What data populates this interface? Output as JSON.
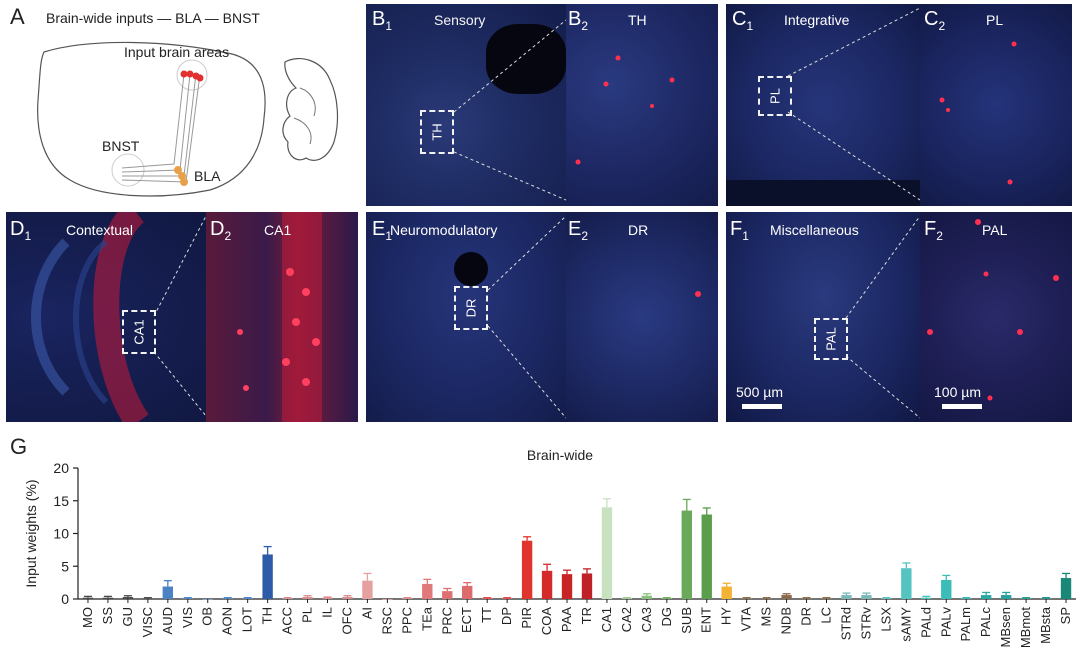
{
  "panel_a": {
    "letter": "A",
    "title": "Brain-wide inputs — BLA — BNST",
    "label_input": "Input brain areas",
    "label_bnst": "BNST",
    "label_bla": "BLA"
  },
  "panels": {
    "b1": {
      "letter": "B",
      "sub": "1",
      "title": "Sensory",
      "roi": "TH"
    },
    "b2": {
      "letter": "B",
      "sub": "2",
      "title": "TH"
    },
    "c1": {
      "letter": "C",
      "sub": "1",
      "title": "Integrative",
      "roi": "PL"
    },
    "c2": {
      "letter": "C",
      "sub": "2",
      "title": "PL"
    },
    "d1": {
      "letter": "D",
      "sub": "1",
      "title": "Contextual",
      "roi": "CA1"
    },
    "d2": {
      "letter": "D",
      "sub": "2",
      "title": "CA1"
    },
    "e1": {
      "letter": "E",
      "sub": "1",
      "title": "Neuromodulatory",
      "roi": "DR"
    },
    "e2": {
      "letter": "E",
      "sub": "2",
      "title": "DR"
    },
    "f1": {
      "letter": "F",
      "sub": "1",
      "title": "Miscellaneous",
      "roi": "PAL",
      "scale": "500 µm"
    },
    "f2": {
      "letter": "F",
      "sub": "2",
      "title": "PAL",
      "scale": "100 µm"
    }
  },
  "panel_g": {
    "letter": "G"
  },
  "chart_data": {
    "type": "bar",
    "title": "Brain-wide",
    "xlabel": "",
    "ylabel": "Input weights (%)",
    "ylim": [
      0,
      20
    ],
    "yticks": [
      0,
      5,
      10,
      15,
      20
    ],
    "categories": [
      "MO",
      "SS",
      "GU",
      "VISC",
      "AUD",
      "VIS",
      "OB",
      "AON",
      "LOT",
      "TH",
      "ACC",
      "PL",
      "IL",
      "OFC",
      "AI",
      "RSC",
      "PPC",
      "TEa",
      "PRC",
      "ECT",
      "TT",
      "DP",
      "PIR",
      "COA",
      "PAA",
      "TR",
      "CA1",
      "CA2",
      "CA3",
      "DG",
      "SUB",
      "ENT",
      "HY",
      "VTA",
      "MS",
      "NDB",
      "DR",
      "LC",
      "STRd",
      "STRv",
      "LSX",
      "sAMY",
      "PALd",
      "PALv",
      "PALm",
      "PALc",
      "MBsen",
      "MBmot",
      "MBsta",
      "SP"
    ],
    "values": [
      0.2,
      0.2,
      0.3,
      0.1,
      1.9,
      0.1,
      0.0,
      0.1,
      0.1,
      6.8,
      0.1,
      0.3,
      0.2,
      0.3,
      2.8,
      0.0,
      0.1,
      2.3,
      1.2,
      2.0,
      0.1,
      0.1,
      8.9,
      4.3,
      3.8,
      3.9,
      14.0,
      0.1,
      0.5,
      0.1,
      13.5,
      12.9,
      1.9,
      0.1,
      0.1,
      0.6,
      0.1,
      0.1,
      0.6,
      0.6,
      0.1,
      4.7,
      0.2,
      2.9,
      0.1,
      0.6,
      0.6,
      0.1,
      0.1,
      3.2
    ],
    "errors": [
      0.2,
      0.2,
      0.2,
      0.1,
      0.9,
      0.1,
      0.0,
      0.1,
      0.1,
      1.2,
      0.1,
      0.2,
      0.1,
      0.2,
      1.1,
      0.0,
      0.1,
      0.7,
      0.4,
      0.5,
      0.1,
      0.1,
      0.6,
      1.0,
      0.6,
      0.7,
      1.3,
      0.1,
      0.3,
      0.1,
      1.7,
      1.0,
      0.5,
      0.1,
      0.1,
      0.2,
      0.1,
      0.1,
      0.3,
      0.3,
      0.1,
      0.8,
      0.2,
      0.7,
      0.1,
      0.4,
      0.4,
      0.1,
      0.1,
      0.7
    ],
    "colors": [
      "#4a4a4a",
      "#4a4a4a",
      "#4a4a4a",
      "#4a4a4a",
      "#4a82c4",
      "#4a82c4",
      "#4a82c4",
      "#4a82c4",
      "#4a82c4",
      "#2e5ba8",
      "#d88a8a",
      "#d88a8a",
      "#d88a8a",
      "#d88a8a",
      "#e6a0a0",
      "#d88a8a",
      "#d88a8a",
      "#e07a7a",
      "#dd7070",
      "#dd6b6b",
      "#e04a4a",
      "#e04a4a",
      "#e0342e",
      "#d42a2a",
      "#c82426",
      "#bf2226",
      "#c8e2c0",
      "#9fcc92",
      "#8ac07c",
      "#6fb262",
      "#6aa85a",
      "#5a9e4c",
      "#f2b233",
      "#8a6a4a",
      "#8a6a4a",
      "#8a6a4a",
      "#8a6a4a",
      "#8a6a4a",
      "#7ab8b8",
      "#7ab8b8",
      "#5ec0c0",
      "#54c4c0",
      "#48c0bc",
      "#3cbcb8",
      "#34b4b0",
      "#2aa8a4",
      "#26a09a",
      "#22988e",
      "#1e9084",
      "#1a8878"
    ],
    "grid": false,
    "legend": "none"
  }
}
